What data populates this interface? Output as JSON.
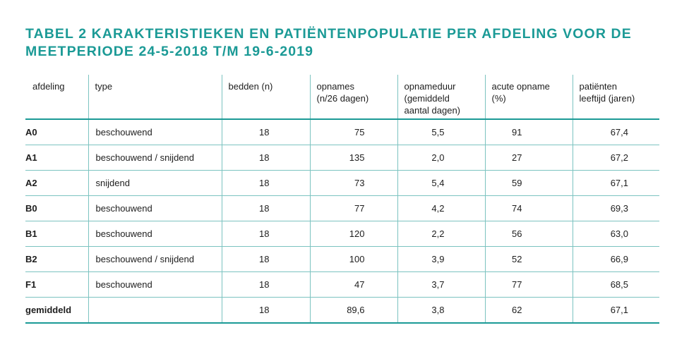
{
  "title": "TABEL 2  KARAKTERISTIEKEN EN PATIËNTENPOPULATIE PER AFDELING VOOR DE MEETPERIODE 24-5-2018 T/M 19-6-2019",
  "headers": [
    [
      "afdeling"
    ],
    [
      "type"
    ],
    [
      "bedden (n)"
    ],
    [
      "opnames",
      "(n/26 dagen)"
    ],
    [
      "opnameduur",
      "(gemiddeld",
      "aantal dagen)"
    ],
    [
      "acute opname",
      "(%)"
    ],
    [
      "patiënten",
      "leeftijd (jaren)"
    ]
  ],
  "rows": [
    {
      "afdeling": "A0",
      "type": "beschouwend",
      "bedden": "18",
      "opnames": "75",
      "opnameduur": "5,5",
      "acuut": "91",
      "leeftijd": "67,4"
    },
    {
      "afdeling": "A1",
      "type": "beschouwend / snijdend",
      "bedden": "18",
      "opnames": "135",
      "opnameduur": "2,0",
      "acuut": "27",
      "leeftijd": "67,2"
    },
    {
      "afdeling": "A2",
      "type": "snijdend",
      "bedden": "18",
      "opnames": "73",
      "opnameduur": "5,4",
      "acuut": "59",
      "leeftijd": "67,1"
    },
    {
      "afdeling": "B0",
      "type": "beschouwend",
      "bedden": "18",
      "opnames": "77",
      "opnameduur": "4,2",
      "acuut": "74",
      "leeftijd": "69,3"
    },
    {
      "afdeling": "B1",
      "type": "beschouwend",
      "bedden": "18",
      "opnames": "120",
      "opnameduur": "2,2",
      "acuut": "56",
      "leeftijd": "63,0"
    },
    {
      "afdeling": "B2",
      "type": "beschouwend / snijdend",
      "bedden": "18",
      "opnames": "100",
      "opnameduur": "3,9",
      "acuut": "52",
      "leeftijd": "66,9"
    },
    {
      "afdeling": "F1",
      "type": "beschouwend",
      "bedden": "18",
      "opnames": "47",
      "opnameduur": "3,7",
      "acuut": "77",
      "leeftijd": "68,5"
    },
    {
      "afdeling": "gemiddeld",
      "type": "",
      "bedden": "18",
      "opnames": "89,6",
      "opnameduur": "3,8",
      "acuut": "62",
      "leeftijd": "67,1"
    }
  ],
  "colors": {
    "accent": "#1b9a96",
    "rule": "#7cc3c0"
  }
}
